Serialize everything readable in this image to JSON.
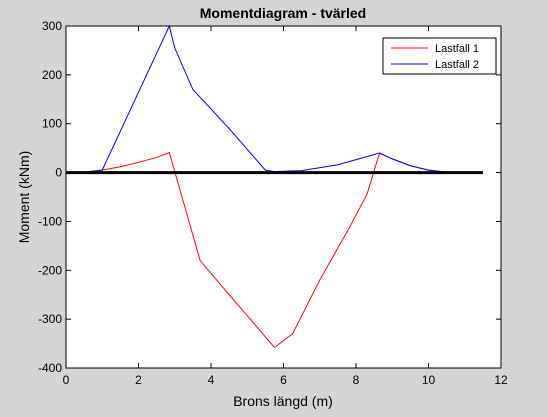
{
  "chart_data": {
    "type": "line",
    "title": "Momentdiagram - tvärled",
    "xlabel": "Brons längd (m)",
    "ylabel": "Moment (kNm)",
    "xlim": [
      0,
      12
    ],
    "ylim": [
      -400,
      300
    ],
    "xticks": [
      0,
      2,
      4,
      6,
      8,
      10,
      12
    ],
    "yticks": [
      -400,
      -300,
      -200,
      -100,
      0,
      100,
      200,
      300
    ],
    "grid": false,
    "legend_position": "top-right",
    "series": [
      {
        "name": "Lastfall 1",
        "color": "#ff0000",
        "x": [
          0,
          0.5,
          1.0,
          1.5,
          2.0,
          2.5,
          2.85,
          3.0,
          3.7,
          4.5,
          5.2,
          5.75,
          6.25,
          7.0,
          7.8,
          8.3,
          8.65,
          9.0,
          9.5,
          10.0,
          10.5,
          11.0
        ],
        "y": [
          0,
          1,
          5,
          12,
          21,
          31,
          41,
          2,
          -180,
          -250,
          -310,
          -358,
          -330,
          -220,
          -115,
          -45,
          40,
          28,
          14,
          5,
          1,
          0
        ]
      },
      {
        "name": "Lastfall 2",
        "color": "#0000ff",
        "x": [
          0,
          0.5,
          1.0,
          2.85,
          3.0,
          3.5,
          4.5,
          5.5,
          5.75,
          6.5,
          7.5,
          8.65,
          9.0,
          9.5,
          10.0,
          10.5,
          11.0
        ],
        "y": [
          0,
          1,
          5,
          300,
          255,
          170,
          90,
          5,
          2,
          4,
          16,
          40,
          28,
          14,
          5,
          1,
          0
        ]
      },
      {
        "name": "",
        "color": "#000000",
        "x": [
          0,
          11.5
        ],
        "y": [
          0,
          0
        ]
      }
    ]
  }
}
